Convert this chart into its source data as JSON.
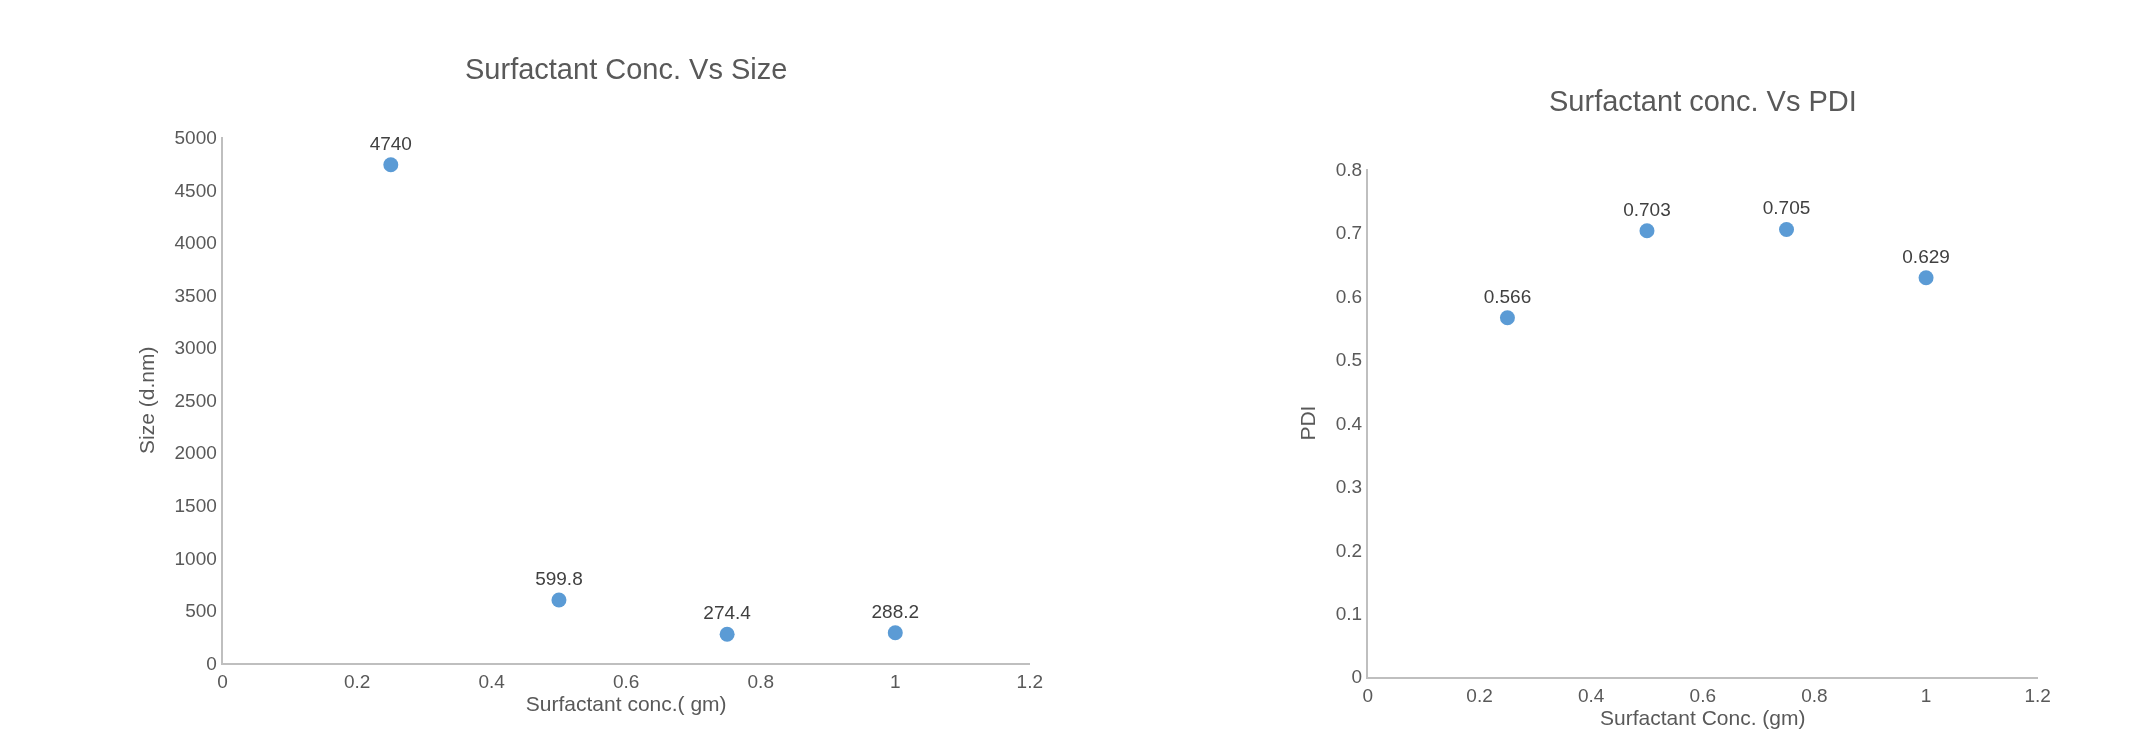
{
  "chart_data": [
    {
      "type": "scatter",
      "title": "Surfactant Conc. Vs Size",
      "xlabel": "Surfactant conc.( gm)",
      "ylabel": "Size (d.nm)",
      "x": [
        0.25,
        0.5,
        0.75,
        1
      ],
      "series": [
        {
          "color": "#5b9bd5",
          "values": [
            4740,
            599.8,
            274.4,
            288.2
          ]
        }
      ],
      "xlim": [
        0,
        1.2
      ],
      "xticks": [
        0,
        0.2,
        0.4,
        0.6,
        0.8,
        1,
        1.2
      ],
      "ylim": [
        0,
        5000
      ],
      "yticks": [
        0,
        500,
        1000,
        1500,
        2000,
        2500,
        3000,
        3500,
        4000,
        4500,
        5000
      ],
      "data_labels": true,
      "grid": false,
      "marker": "circle"
    },
    {
      "type": "scatter",
      "title": "Surfactant conc. Vs PDI",
      "xlabel": "Surfactant Conc. (gm)",
      "ylabel": "PDI",
      "x": [
        0.25,
        0.5,
        0.75,
        1
      ],
      "series": [
        {
          "color": "#5b9bd5",
          "values": [
            0.566,
            0.703,
            0.705,
            0.629
          ]
        }
      ],
      "xlim": [
        0,
        1.2
      ],
      "xticks": [
        0,
        0.2,
        0.4,
        0.6,
        0.8,
        1,
        1.2
      ],
      "ylim": [
        0,
        0.8
      ],
      "yticks": [
        0,
        0.1,
        0.2,
        0.3,
        0.4,
        0.5,
        0.6,
        0.7,
        0.8
      ],
      "data_labels": true,
      "grid": false,
      "marker": "circle"
    }
  ]
}
